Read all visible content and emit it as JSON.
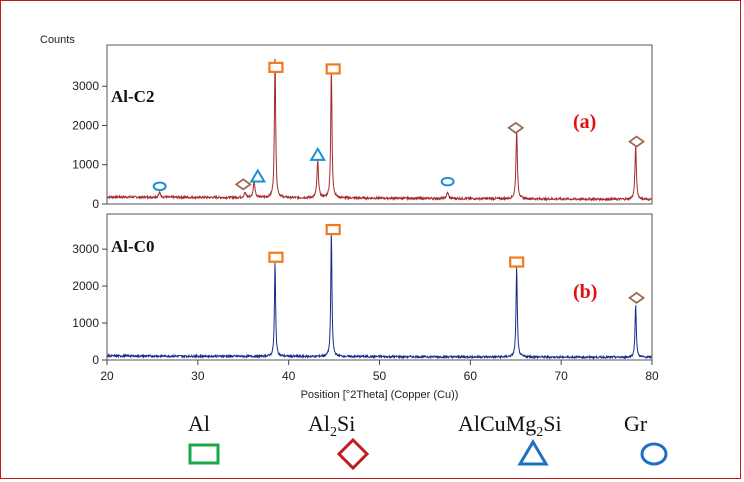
{
  "chart_data": [
    {
      "type": "line",
      "panel_label": "(a)",
      "sample_label": "Al-C2",
      "y_axis_title": "Counts",
      "ylim": [
        0,
        4050
      ],
      "yticks": [
        0,
        1000,
        2000,
        3000
      ],
      "xlim": [
        20,
        80
      ],
      "color": "#a52a2a",
      "baseline": 180,
      "peaks": [
        {
          "x": 25.8,
          "h": 120,
          "w": 0.25
        },
        {
          "x": 35.2,
          "h": 120,
          "w": 0.25
        },
        {
          "x": 36.2,
          "h": 420,
          "w": 0.22
        },
        {
          "x": 38.5,
          "h": 3620,
          "w": 0.16
        },
        {
          "x": 43.2,
          "h": 940,
          "w": 0.2
        },
        {
          "x": 44.7,
          "h": 3300,
          "w": 0.16
        },
        {
          "x": 57.5,
          "h": 150,
          "w": 0.25
        },
        {
          "x": 65.1,
          "h": 1760,
          "w": 0.18
        },
        {
          "x": 78.2,
          "h": 1380,
          "w": 0.18
        }
      ],
      "markers": [
        {
          "shape": "circle",
          "x": 25.8,
          "y": 450
        },
        {
          "shape": "diamond",
          "x": 35.0,
          "y": 500
        },
        {
          "shape": "triangle",
          "x": 36.6,
          "y": 700
        },
        {
          "shape": "square",
          "x": 38.6,
          "y": 3480
        },
        {
          "shape": "triangle",
          "x": 43.2,
          "y": 1250
        },
        {
          "shape": "square",
          "x": 44.9,
          "y": 3440
        },
        {
          "shape": "circle",
          "x": 57.5,
          "y": 570
        },
        {
          "shape": "diamond",
          "x": 65.0,
          "y": 1940
        },
        {
          "shape": "diamond",
          "x": 78.3,
          "y": 1590
        }
      ]
    },
    {
      "type": "line",
      "panel_label": "(b)",
      "sample_label": "Al-C0",
      "ylim": [
        0,
        3950
      ],
      "yticks": [
        0,
        1000,
        2000,
        3000
      ],
      "xlim": [
        20,
        80
      ],
      "xticks": [
        20,
        30,
        40,
        50,
        60,
        70,
        80
      ],
      "xlabel": "Position [°2Theta] (Copper (Cu))",
      "color": "#1c2a8c",
      "baseline": 110,
      "peaks": [
        {
          "x": 38.5,
          "h": 2560,
          "w": 0.15
        },
        {
          "x": 44.7,
          "h": 3400,
          "w": 0.15
        },
        {
          "x": 65.1,
          "h": 2450,
          "w": 0.16
        },
        {
          "x": 78.2,
          "h": 1450,
          "w": 0.16
        }
      ],
      "markers": [
        {
          "shape": "square",
          "x": 38.6,
          "y": 2780
        },
        {
          "shape": "square",
          "x": 44.9,
          "y": 3530
        },
        {
          "shape": "square",
          "x": 65.1,
          "y": 2650
        },
        {
          "shape": "diamond",
          "x": 78.3,
          "y": 1680
        }
      ]
    }
  ],
  "legend": [
    {
      "shape": "square",
      "label": "Al",
      "color": "#1aa84a"
    },
    {
      "shape": "diamond",
      "label_main": "Al",
      "label_sub": "2",
      "label_tail": "Si",
      "color": "#c21d1d"
    },
    {
      "shape": "triangle",
      "label_main": "AlCuMg",
      "label_sub": "2",
      "label_tail": "Si",
      "color": "#1f6fc4"
    },
    {
      "shape": "circle",
      "label": "Gr",
      "color": "#1f6fc4"
    }
  ],
  "marker_colors": {
    "square": "#f07a1c",
    "diamond": "#9c6b52",
    "triangle": "#1b8fd0",
    "circle": "#1b8fd0"
  }
}
